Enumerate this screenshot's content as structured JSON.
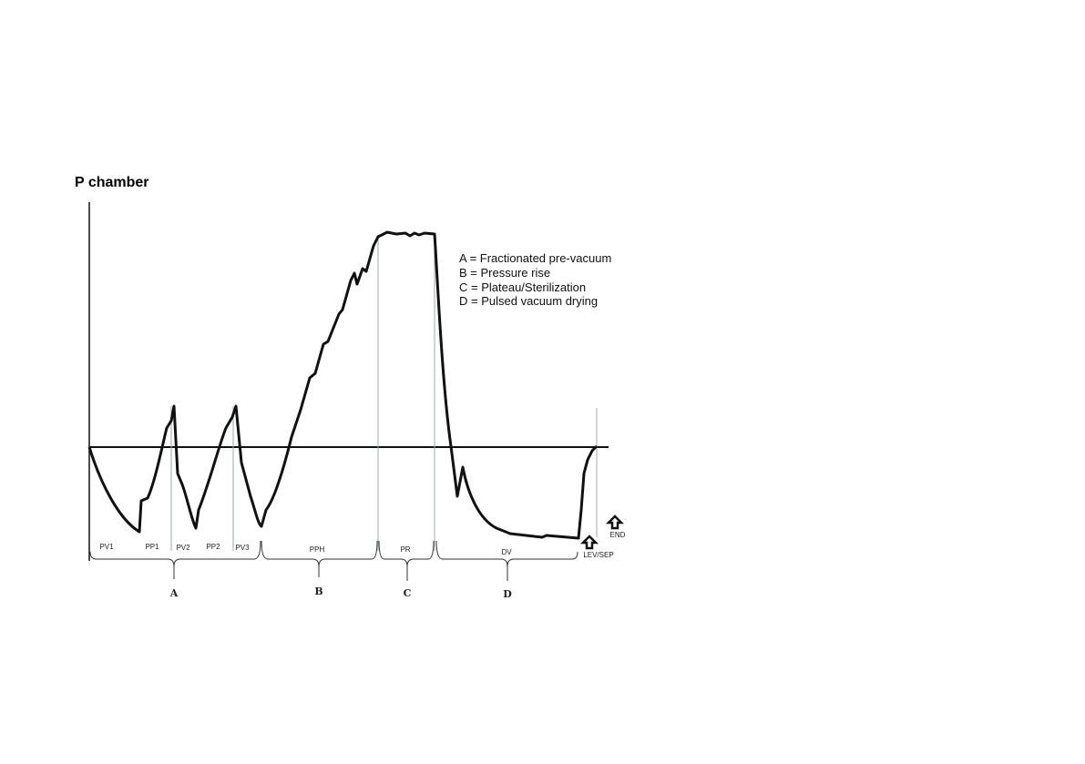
{
  "title": "P chamber",
  "legend": [
    "A = Fractionated pre-vacuum",
    "B = Pressure rise",
    "C = Plateau/Sterilization",
    "D = Pulsed vacuum drying"
  ],
  "phases": [
    "PV1",
    "PP1",
    "PV2",
    "PP2",
    "PV3",
    "PPH",
    "PR",
    "DV"
  ],
  "groups": [
    "A",
    "B",
    "C",
    "D"
  ],
  "markers": [
    "LEV/SEP",
    "END"
  ]
}
